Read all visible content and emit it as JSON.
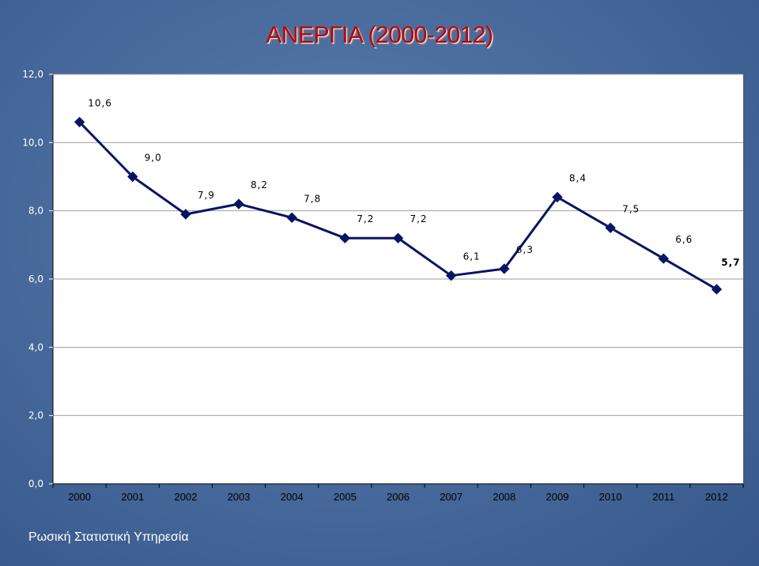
{
  "chart_data": {
    "type": "line",
    "title": "ΑΝΕΡΓΙΑ (2000-2012)",
    "xlabel": "",
    "ylabel": "",
    "categories": [
      "2000",
      "2001",
      "2002",
      "2003",
      "2004",
      "2005",
      "2006",
      "2007",
      "2008",
      "2009",
      "2010",
      "2011",
      "2012"
    ],
    "values": [
      10.6,
      9.0,
      7.9,
      8.2,
      7.8,
      7.2,
      7.2,
      6.1,
      6.3,
      8.4,
      7.5,
      6.6,
      5.7
    ],
    "data_labels": [
      "10,6",
      "9,0",
      "7,9",
      "8,2",
      "7,8",
      "7,2",
      "7,2",
      "6,1",
      "6,3",
      "8,4",
      "7,5",
      "6,6",
      "5,7"
    ],
    "ylim": [
      0,
      12
    ],
    "yticks": [
      "0,0",
      "2,0",
      "4,0",
      "6,0",
      "8,0",
      "10,0",
      "12,0"
    ],
    "grid": true,
    "line_color": "#0a1464",
    "highlight_label_color": "#cc0000",
    "plot_background": "#ffffff",
    "gridline_color": "#9e9e9e"
  },
  "footer": {
    "source": "Ρωσική Στατιστική Υπηρεσία"
  }
}
